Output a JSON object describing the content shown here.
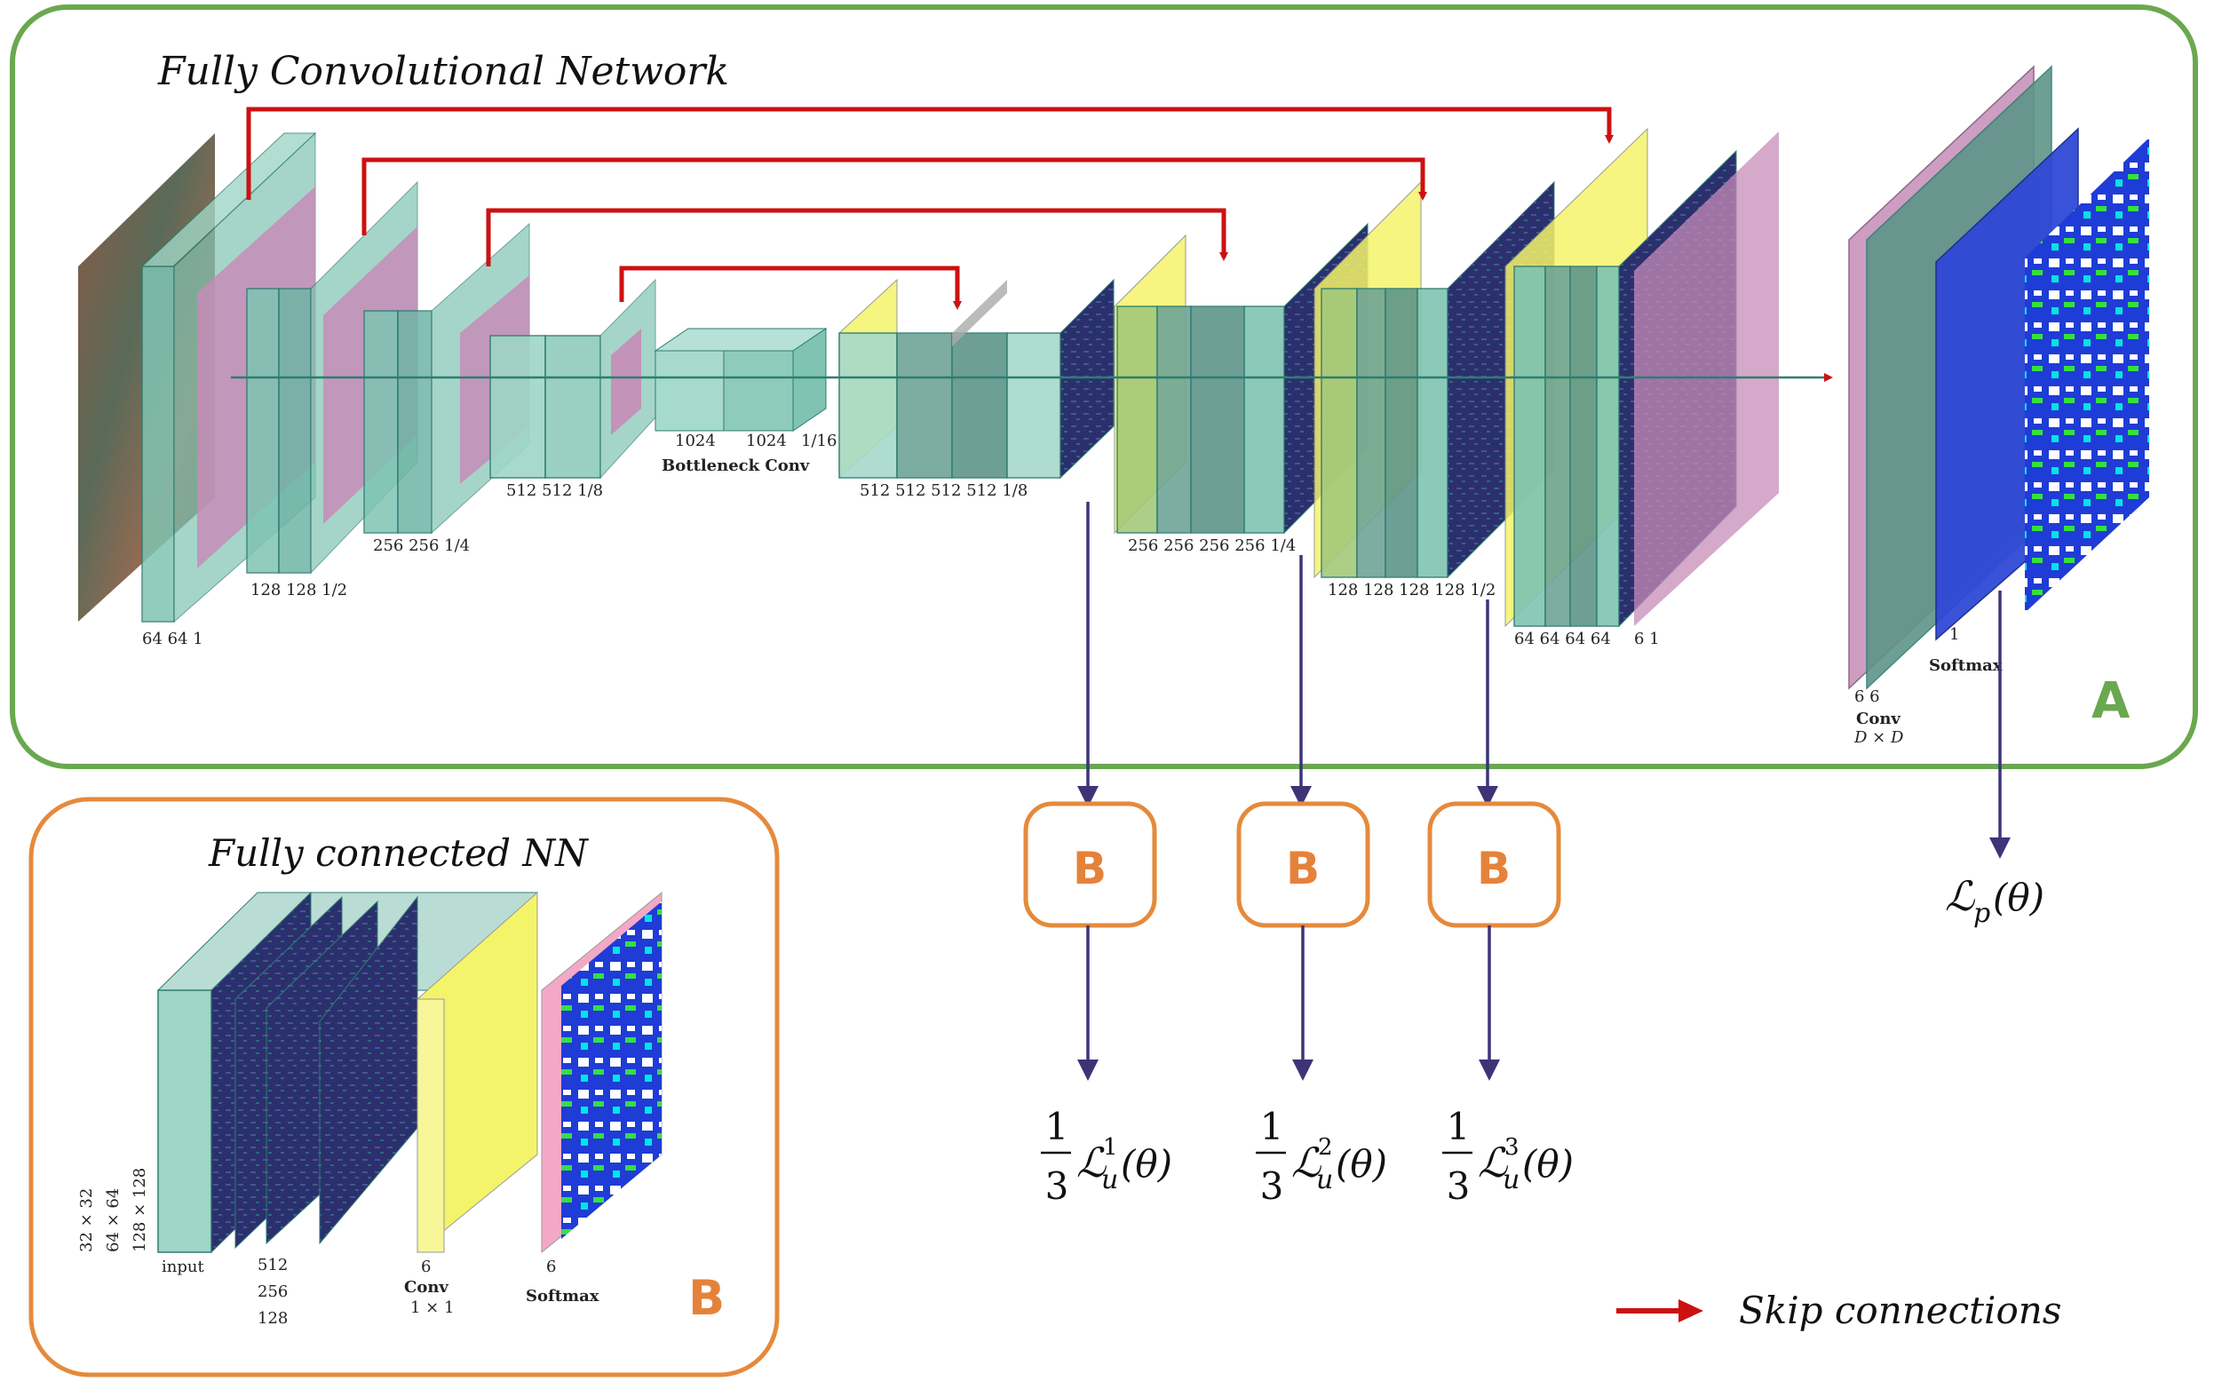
{
  "panelA": {
    "title": "Fully Convolutional Network",
    "badge": "A",
    "labels": {
      "enc1": "64 64 1",
      "enc2": "128 128 1/2",
      "enc3": "256 256 1/4",
      "enc4": "512 512 1/8",
      "bottleneck_ch1": "1024",
      "bottleneck_ch2": "1024",
      "bottleneck_scale": "1/16",
      "bottleneck_name": "Bottleneck Conv",
      "dec1": "512 512 512 512 1/8",
      "dec2": "256 256 256 256 1/4",
      "dec3": "128 128 128 128 1/2",
      "dec4": "64 64 64 64",
      "dec5": "6 1",
      "final_ch": "6 6",
      "final_conv": "Conv",
      "final_conv_size": "D × D",
      "softmax_ch": "1",
      "softmax": "Softmax"
    }
  },
  "panelB": {
    "title": "Fully connected NN",
    "badge": "B",
    "sizes": [
      "32 × 32",
      "64 × 64",
      "128 × 128"
    ],
    "input_label": "input",
    "channels": [
      "512",
      "256",
      "128"
    ],
    "conv_ch": "6",
    "conv_label": "Conv",
    "conv_size": "1 × 1",
    "softmax_ch": "6",
    "softmax_label": "Softmax"
  },
  "heads": [
    {
      "badge": "B",
      "frac_num": "1",
      "frac_den": "3",
      "loss": "ℒ",
      "sub": "u",
      "sup": "1",
      "arg": "(θ)"
    },
    {
      "badge": "B",
      "frac_num": "1",
      "frac_den": "3",
      "loss": "ℒ",
      "sub": "u",
      "sup": "2",
      "arg": "(θ)"
    },
    {
      "badge": "B",
      "frac_num": "1",
      "frac_den": "3",
      "loss": "ℒ",
      "sub": "u",
      "sup": "3",
      "arg": "(θ)"
    }
  ],
  "primary_loss": {
    "loss": "ℒ",
    "sub": "p",
    "arg": "(θ)"
  },
  "legend": {
    "label": "Skip connections"
  },
  "colors": {
    "green_border": "#6aa84f",
    "orange_border": "#e58a3c",
    "orange_text": "#e5823a",
    "skip_red": "#cc1111",
    "arrow_purple": "#3d3478",
    "teal": "#7fc4b2",
    "teal_dark": "#2e7d72",
    "pink": "#c68cb8",
    "yellow": "#f4f46a",
    "featmap": "#2c2f6e",
    "blue": "#2f49d6"
  }
}
